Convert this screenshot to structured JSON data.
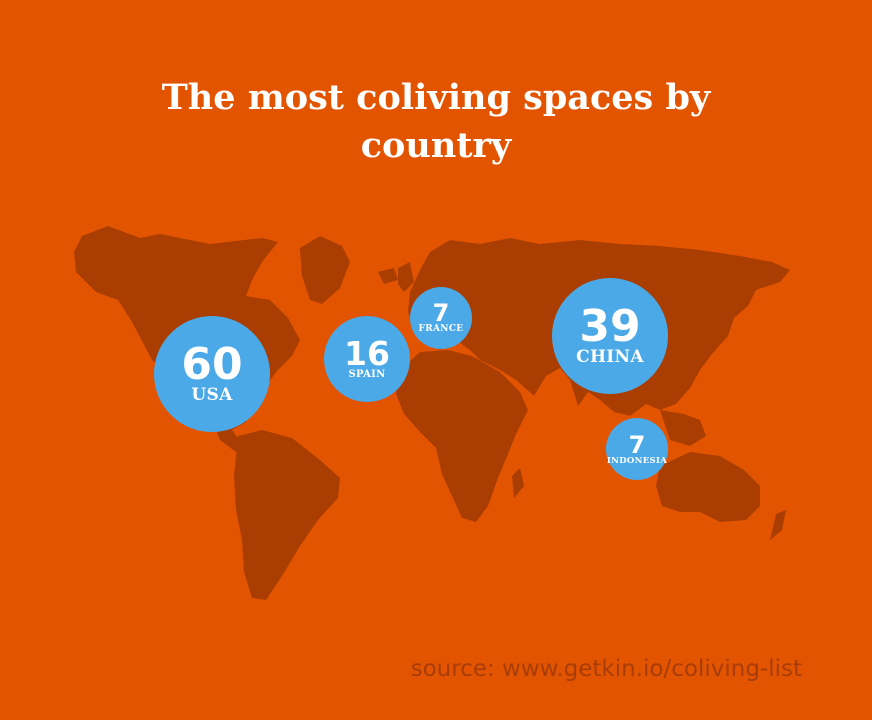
{
  "title": "The most coliving spaces by country",
  "source": "source: www.getkin.io/coliving-list",
  "colors": {
    "background": "#E35400",
    "land": "#AA3E02",
    "bubble": "#4AA9E6",
    "text": "#FFFFFF",
    "source_text": "#A83D0A"
  },
  "countries": [
    {
      "value": "60",
      "name": "USA"
    },
    {
      "value": "16",
      "name": "SPAIN"
    },
    {
      "value": "7",
      "name": "FRANCE"
    },
    {
      "value": "39",
      "name": "CHINA"
    },
    {
      "value": "7",
      "name": "INDONESIA"
    }
  ]
}
